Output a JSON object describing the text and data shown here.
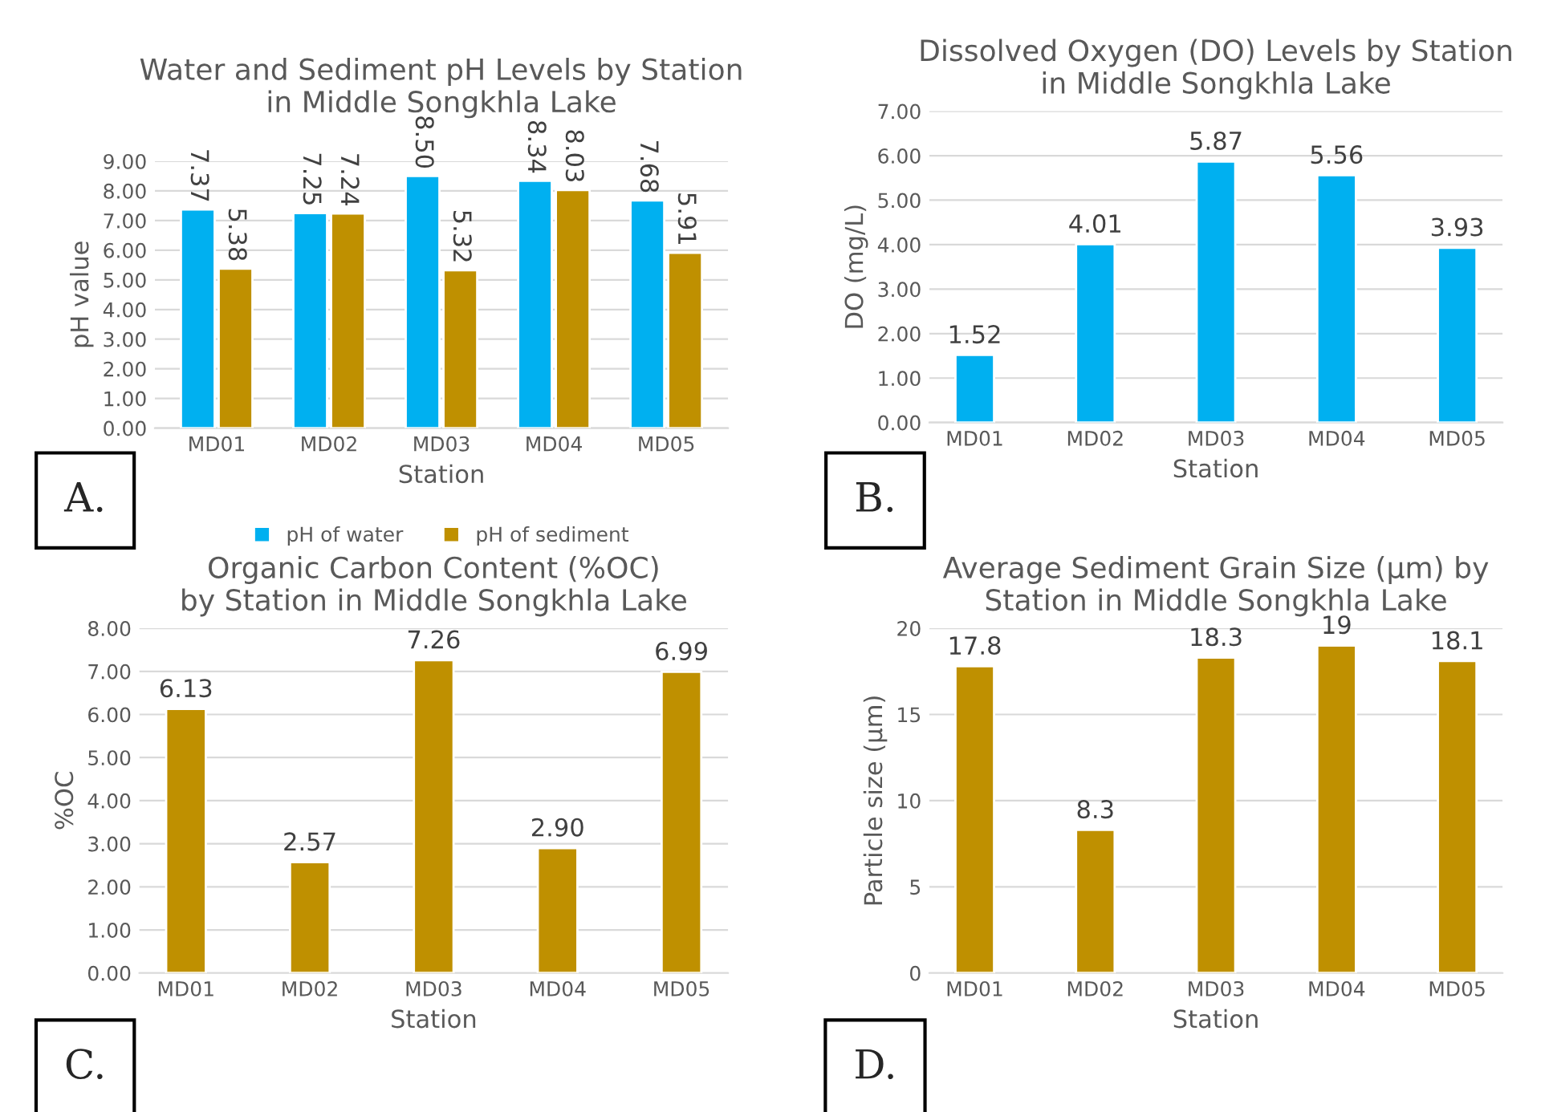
{
  "chart_data": [
    {
      "type": "bar",
      "title": "Water and Sediment pH Levels by Station\nin Middle Songkhla Lake",
      "xlabel": "Station",
      "ylabel": "pH value",
      "categories": [
        "MD01",
        "MD02",
        "MD03",
        "MD04",
        "MD05"
      ],
      "series": [
        {
          "name": "pH of water",
          "color": "#00b0f0",
          "values": [
            7.37,
            7.25,
            8.5,
            8.34,
            7.68
          ],
          "value_labels": [
            "7.37",
            "7.25",
            "8.50",
            "8.34",
            "7.68"
          ]
        },
        {
          "name": "pH of sediment",
          "color": "#bf9000",
          "values": [
            5.38,
            7.24,
            5.32,
            8.03,
            5.91
          ],
          "value_labels": [
            "5.38",
            "7.24",
            "5.32",
            "8.03",
            "5.91"
          ]
        }
      ],
      "ylim": [
        0,
        9
      ],
      "yticks": [
        {
          "value": 0,
          "label": "0.00"
        },
        {
          "value": 1,
          "label": "1.00"
        },
        {
          "value": 2,
          "label": "2.00"
        },
        {
          "value": 3,
          "label": "3.00"
        },
        {
          "value": 4,
          "label": "4.00"
        },
        {
          "value": 5,
          "label": "5.00"
        },
        {
          "value": 6,
          "label": "6.00"
        },
        {
          "value": 7,
          "label": "7.00"
        },
        {
          "value": 8,
          "label": "8.00"
        },
        {
          "value": 9,
          "label": "9.00"
        }
      ],
      "grid": "y",
      "legend": "bottom",
      "annotations": [
        "A."
      ]
    },
    {
      "type": "bar",
      "title": "Dissolved Oxygen (DO) Levels by Station\nin Middle Songkhla Lake",
      "xlabel": "Station",
      "ylabel": "DO (mg/L)",
      "categories": [
        "MD01",
        "MD02",
        "MD03",
        "MD04",
        "MD05"
      ],
      "series": [
        {
          "color": "#00b0f0",
          "values": [
            1.52,
            4.01,
            5.87,
            5.56,
            3.93
          ],
          "value_labels": [
            "1.52",
            "4.01",
            "5.87",
            "5.56",
            "3.93"
          ]
        }
      ],
      "ylim": [
        0,
        7
      ],
      "yticks": [
        {
          "value": 0,
          "label": "0.00"
        },
        {
          "value": 1,
          "label": "1.00"
        },
        {
          "value": 2,
          "label": "2.00"
        },
        {
          "value": 3,
          "label": "3.00"
        },
        {
          "value": 4,
          "label": "4.00"
        },
        {
          "value": 5,
          "label": "5.00"
        },
        {
          "value": 6,
          "label": "6.00"
        },
        {
          "value": 7,
          "label": "7.00"
        }
      ],
      "grid": "y",
      "annotations": [
        "B."
      ]
    },
    {
      "type": "bar",
      "title": "Organic Carbon Content (%OC)\nby Station in Middle Songkhla Lake",
      "xlabel": "Station",
      "ylabel": "%OC",
      "categories": [
        "MD01",
        "MD02",
        "MD03",
        "MD04",
        "MD05"
      ],
      "series": [
        {
          "color": "#bf9000",
          "values": [
            6.13,
            2.57,
            7.26,
            2.9,
            6.99
          ],
          "value_labels": [
            "6.13",
            "2.57",
            "7.26",
            "2.90",
            "6.99"
          ]
        }
      ],
      "ylim": [
        0,
        8
      ],
      "yticks": [
        {
          "value": 0,
          "label": "0.00"
        },
        {
          "value": 1,
          "label": "1.00"
        },
        {
          "value": 2,
          "label": "2.00"
        },
        {
          "value": 3,
          "label": "3.00"
        },
        {
          "value": 4,
          "label": "4.00"
        },
        {
          "value": 5,
          "label": "5.00"
        },
        {
          "value": 6,
          "label": "6.00"
        },
        {
          "value": 7,
          "label": "7.00"
        },
        {
          "value": 8,
          "label": "8.00"
        }
      ],
      "grid": "y",
      "annotations": [
        "C."
      ]
    },
    {
      "type": "bar",
      "title": "Average Sediment Grain Size (µm) by\nStation in Middle Songkhla Lake",
      "xlabel": "Station",
      "ylabel": "Particle size (µm)",
      "categories": [
        "MD01",
        "MD02",
        "MD03",
        "MD04",
        "MD05"
      ],
      "series": [
        {
          "color": "#bf9000",
          "values": [
            17.8,
            8.3,
            18.3,
            19,
            18.1
          ],
          "value_labels": [
            "17.8",
            "8.3",
            "18.3",
            "19",
            "18.1"
          ]
        }
      ],
      "ylim": [
        0,
        20
      ],
      "yticks": [
        0,
        5,
        10,
        15,
        20
      ],
      "grid": "y",
      "annotations": [
        "D."
      ]
    }
  ]
}
